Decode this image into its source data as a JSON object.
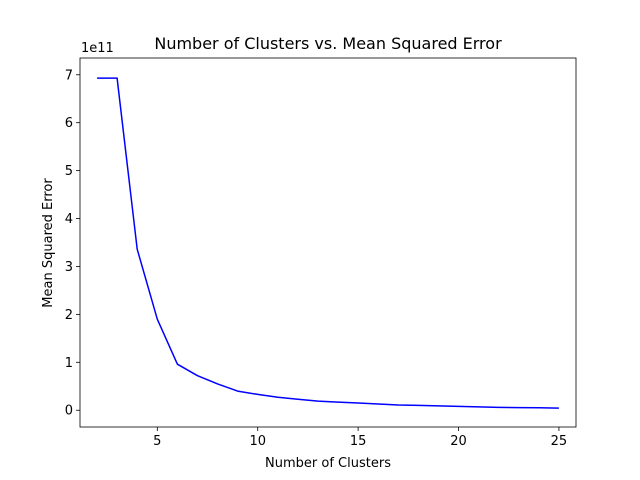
{
  "chart_data": {
    "type": "line",
    "title": "Number of Clusters vs. Mean Squared Error",
    "xlabel": "Number of Clusters",
    "ylabel": "Mean Squared Error",
    "y_offset_label": "1e11",
    "xlim": [
      1.15,
      25.85
    ],
    "ylim": [
      -0.35,
      7.35
    ],
    "x_ticks": [
      5,
      10,
      15,
      20,
      25
    ],
    "y_ticks": [
      0,
      1,
      2,
      3,
      4,
      5,
      6,
      7
    ],
    "grid": false,
    "legend": "none",
    "series": [
      {
        "color": "#0000ff",
        "x": [
          2,
          3,
          4,
          5,
          6,
          7,
          8,
          9,
          10,
          11,
          12,
          13,
          14,
          15,
          16,
          17,
          18,
          19,
          20,
          21,
          22,
          23,
          24,
          25
        ],
        "y": [
          6.93,
          6.93,
          3.36,
          1.9,
          0.96,
          0.72,
          0.55,
          0.4,
          0.33,
          0.27,
          0.23,
          0.19,
          0.17,
          0.15,
          0.13,
          0.11,
          0.1,
          0.09,
          0.08,
          0.07,
          0.06,
          0.055,
          0.05,
          0.045
        ]
      }
    ]
  }
}
